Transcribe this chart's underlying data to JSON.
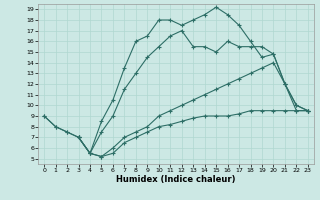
{
  "xlabel": "Humidex (Indice chaleur)",
  "background_color": "#cce8e4",
  "grid_color": "#b0d8d0",
  "line_color": "#2d6e66",
  "xlim": [
    -0.5,
    23.5
  ],
  "ylim": [
    4.5,
    19.5
  ],
  "xticks": [
    0,
    1,
    2,
    3,
    4,
    5,
    6,
    7,
    8,
    9,
    10,
    11,
    12,
    13,
    14,
    15,
    16,
    17,
    18,
    19,
    20,
    21,
    22,
    23
  ],
  "yticks": [
    5,
    6,
    7,
    8,
    9,
    10,
    11,
    12,
    13,
    14,
    15,
    16,
    17,
    18,
    19
  ],
  "lines": [
    {
      "x": [
        0,
        1,
        2,
        3,
        4,
        5,
        6,
        7,
        8,
        9,
        10,
        11,
        12,
        13,
        14,
        15,
        16,
        17,
        18,
        19,
        20,
        21,
        22,
        23
      ],
      "y": [
        9,
        8,
        7.5,
        7,
        5.5,
        5.2,
        5.5,
        6.5,
        7.0,
        7.5,
        8.0,
        8.2,
        8.5,
        8.8,
        9.0,
        9.0,
        9.0,
        9.2,
        9.5,
        9.5,
        9.5,
        9.5,
        9.5,
        9.5
      ]
    },
    {
      "x": [
        0,
        1,
        2,
        3,
        4,
        5,
        6,
        7,
        8,
        9,
        10,
        11,
        12,
        13,
        14,
        15,
        16,
        17,
        18,
        19,
        20,
        21,
        22,
        23
      ],
      "y": [
        9,
        8,
        7.5,
        7,
        5.5,
        5.2,
        6.0,
        7.0,
        7.5,
        8.0,
        9.0,
        9.5,
        10.0,
        10.5,
        11.0,
        11.5,
        12.0,
        12.5,
        13.0,
        13.5,
        14.0,
        12.0,
        10.0,
        9.5
      ]
    },
    {
      "x": [
        3,
        4,
        5,
        6,
        7,
        8,
        9,
        10,
        11,
        12,
        13,
        14,
        15,
        16,
        17,
        18,
        19,
        20,
        21,
        22,
        23
      ],
      "y": [
        7,
        5.5,
        7.5,
        9.0,
        11.5,
        13.0,
        14.5,
        15.5,
        16.5,
        17.0,
        15.5,
        15.5,
        15.0,
        16.0,
        15.5,
        15.5,
        15.5,
        14.8,
        12.0,
        10.0,
        9.5
      ]
    },
    {
      "x": [
        3,
        4,
        5,
        6,
        7,
        8,
        9,
        10,
        11,
        12,
        13,
        14,
        15,
        16,
        17,
        18,
        19,
        20,
        21,
        22,
        23
      ],
      "y": [
        7,
        5.5,
        8.5,
        10.5,
        13.5,
        16.0,
        16.5,
        18.0,
        18.0,
        17.5,
        18.0,
        18.5,
        19.2,
        18.5,
        17.5,
        16.0,
        14.5,
        14.8,
        12.0,
        9.5,
        9.5
      ]
    }
  ]
}
